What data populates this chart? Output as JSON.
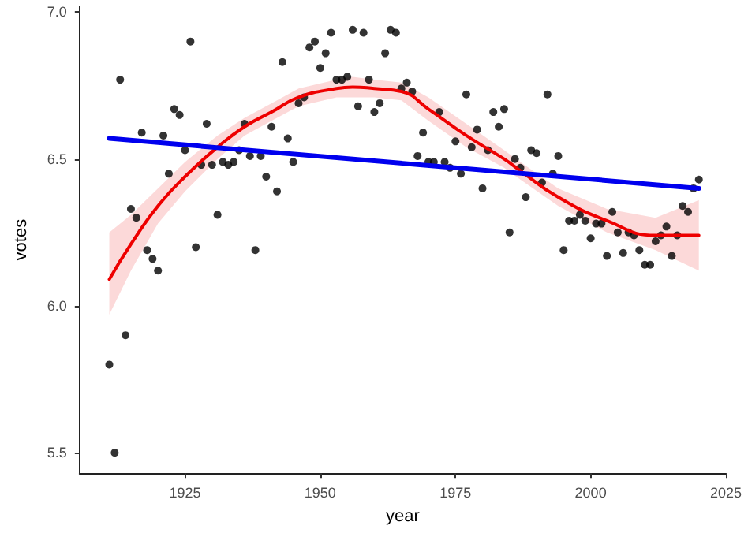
{
  "chart_data": {
    "type": "scatter",
    "xlabel": "year",
    "ylabel": "votes",
    "xlim": [
      1905.5,
      2025
    ],
    "ylim": [
      5.43,
      7.02
    ],
    "xticks": [
      1925,
      1950,
      1975,
      2000,
      2025
    ],
    "yticks": [
      5.5,
      {
        "value": 6,
        "label": "6.0"
      },
      6.5,
      {
        "value": 7,
        "label": "7.0"
      }
    ],
    "series": [
      {
        "color": "#000000",
        "marker": "circle",
        "x": [
          1911,
          1912,
          1913,
          1914,
          1915,
          1916,
          1917,
          1918,
          1919,
          1920,
          1921,
          1922,
          1923,
          1924,
          1925,
          1926,
          1927,
          1928,
          1929,
          1930,
          1931,
          1932,
          1933,
          1934,
          1935,
          1936,
          1937,
          1938,
          1939,
          1940,
          1941,
          1942,
          1943,
          1944,
          1945,
          1946,
          1947,
          1948,
          1949,
          1950,
          1951,
          1952,
          1953,
          1954,
          1955,
          1956,
          1957,
          1958,
          1959,
          1960,
          1961,
          1962,
          1963,
          1964,
          1965,
          1966,
          1967,
          1968,
          1969,
          1970,
          1971,
          1972,
          1973,
          1974,
          1975,
          1976,
          1977,
          1978,
          1979,
          1980,
          1981,
          1982,
          1983,
          1984,
          1985,
          1986,
          1987,
          1988,
          1989,
          1990,
          1991,
          1992,
          1993,
          1994,
          1995,
          1996,
          1997,
          1998,
          1999,
          2000,
          2001,
          2002,
          2003,
          2004,
          2005,
          2006,
          2007,
          2008,
          2009,
          2010,
          2011,
          2012,
          2013,
          2014,
          2015,
          2016,
          2017,
          2018,
          2019,
          2020
        ],
        "values": [
          5.8,
          5.5,
          6.77,
          5.9,
          6.33,
          6.3,
          6.59,
          6.19,
          6.16,
          6.12,
          6.58,
          6.45,
          6.67,
          6.65,
          6.53,
          6.9,
          6.2,
          6.48,
          6.62,
          6.48,
          6.31,
          6.49,
          6.48,
          6.49,
          6.53,
          6.62,
          6.51,
          6.19,
          6.51,
          6.44,
          6.61,
          6.39,
          6.83,
          6.57,
          6.49,
          6.69,
          6.71,
          6.88,
          6.9,
          6.81,
          6.86,
          6.93,
          6.77,
          6.77,
          6.78,
          6.94,
          6.68,
          6.93,
          6.77,
          6.66,
          6.69,
          6.86,
          6.94,
          6.93,
          6.74,
          6.76,
          6.73,
          6.51,
          6.59,
          6.49,
          6.49,
          6.66,
          6.49,
          6.47,
          6.56,
          6.45,
          6.72,
          6.54,
          6.6,
          6.4,
          6.53,
          6.66,
          6.61,
          6.67,
          6.25,
          6.5,
          6.47,
          6.37,
          6.53,
          6.52,
          6.42,
          6.72,
          6.45,
          6.51,
          6.19,
          6.29,
          6.29,
          6.31,
          6.29,
          6.23,
          6.28,
          6.28,
          6.17,
          6.32,
          6.25,
          6.18,
          6.25,
          6.24,
          6.19,
          6.14,
          6.14,
          6.22,
          6.24,
          6.27,
          6.17,
          6.24,
          6.34,
          6.32,
          6.4,
          6.43
        ]
      },
      {
        "type": "line",
        "color": "#ee0000",
        "marker": "none",
        "line_style": "solid",
        "x": [
          1911,
          1915,
          1920,
          1925,
          1931,
          1936,
          1941,
          1946,
          1953,
          1956,
          1960,
          1965,
          1970,
          1977,
          1984,
          1987,
          1994,
          2003,
          2012,
          2020
        ],
        "values": [
          6.09,
          6.21,
          6.34,
          6.44,
          6.54,
          6.61,
          6.66,
          6.71,
          6.74,
          6.745,
          6.74,
          6.73,
          6.67,
          6.58,
          6.5,
          6.46,
          6.37,
          6.29,
          6.24,
          6.24
        ],
        "lower": [
          5.97,
          6.12,
          6.28,
          6.39,
          6.5,
          6.58,
          6.63,
          6.68,
          6.71,
          6.71,
          6.71,
          6.7,
          6.63,
          6.54,
          6.47,
          6.43,
          6.34,
          6.25,
          6.19,
          6.12
        ],
        "upper": [
          6.25,
          6.31,
          6.4,
          6.49,
          6.58,
          6.64,
          6.69,
          6.74,
          6.77,
          6.78,
          6.77,
          6.76,
          6.71,
          6.62,
          6.53,
          6.49,
          6.4,
          6.33,
          6.3,
          6.36
        ]
      },
      {
        "type": "line",
        "color": "#0000ee",
        "marker": "none",
        "line_style": "solid",
        "x": [
          1911,
          2020
        ],
        "values": [
          6.57,
          6.4
        ]
      }
    ]
  }
}
